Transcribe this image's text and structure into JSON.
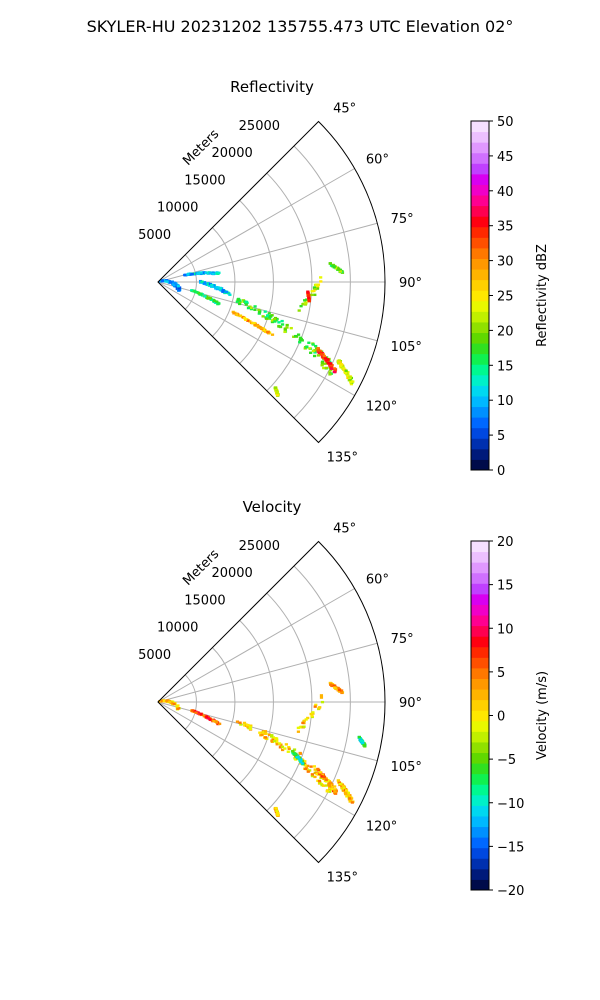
{
  "figure": {
    "suptitle": "SKYLER-HU  20231202  135755.473 UTC Elevation 02°"
  },
  "chart_data": [
    {
      "type": "polar-scatter",
      "title": "Reflectivity",
      "radial_axis_label": "Meters",
      "radial_ticks": [
        5000,
        10000,
        15000,
        20000,
        25000
      ],
      "radial_tick_labels": [
        "5000",
        "10000",
        "15000",
        "20000",
        "25000"
      ],
      "rmax": 29500,
      "theta_range_deg": [
        45,
        135
      ],
      "theta_ticks": [
        45,
        60,
        75,
        90,
        105,
        120,
        135
      ],
      "theta_tick_labels": [
        "45°",
        "60°",
        "75°",
        "90°",
        "105°",
        "120°",
        "135°"
      ],
      "grid": true,
      "colorbar": {
        "label": "Reflectivity dBZ",
        "range": [
          0,
          50
        ],
        "ticks": [
          0,
          5,
          10,
          15,
          20,
          25,
          30,
          35,
          40,
          45,
          50
        ],
        "tick_labels": [
          "0",
          "5",
          "10",
          "15",
          "20",
          "25",
          "30",
          "35",
          "40",
          "45",
          "50"
        ],
        "colors": [
          "#000b4a",
          "#001a7a",
          "#0030b0",
          "#0048e0",
          "#0068ff",
          "#0090ff",
          "#00b8ff",
          "#00d8f0",
          "#00f0c8",
          "#00f890",
          "#10f050",
          "#30e020",
          "#60d800",
          "#90e000",
          "#c0f000",
          "#e8f800",
          "#ffe800",
          "#ffd000",
          "#ffb400",
          "#ff9800",
          "#ff7800",
          "#ff5000",
          "#ff2800",
          "#ff0010",
          "#ff0050",
          "#ff0090",
          "#f000c8",
          "#d800f0",
          "#c040ff",
          "#d070ff",
          "#e098ff",
          "#ecc0ff",
          "#f6e0ff"
        ]
      },
      "series": [
        {
          "theta_deg": [
            84.0,
            87.0
          ],
          "r_m": [
            22500,
            24000
          ],
          "value": 18
        },
        {
          "theta_deg": [
            88.0,
            102.0
          ],
          "r_m": [
            21500,
            18500
          ],
          "value": 21
        },
        {
          "theta_deg": [
            94.0,
            97.0
          ],
          "r_m": [
            19500,
            19800
          ],
          "value": 32
        },
        {
          "theta_deg": [
            103.0,
            117.0
          ],
          "r_m": [
            10500,
            25500
          ],
          "value": 18
        },
        {
          "theta_deg": [
            113.0,
            117.0
          ],
          "r_m": [
            22500,
            26000
          ],
          "value": 34
        },
        {
          "theta_deg": [
            113.5,
            117.5
          ],
          "r_m": [
            25500,
            28500
          ],
          "value": 23
        },
        {
          "theta_deg": [
            104.0,
            110.0
          ],
          "r_m": [
            4500,
            8500
          ],
          "value": 16
        },
        {
          "theta_deg": [
            75.0,
            82.0
          ],
          "r_m": [
            3500,
            8000
          ],
          "value": 10
        },
        {
          "theta_deg": [
            90.0,
            100.0
          ],
          "r_m": [
            5500,
            9500
          ],
          "value": 11
        },
        {
          "theta_deg": [
            70.0,
            110.0
          ],
          "r_m": [
            200,
            3000
          ],
          "value": 9
        },
        {
          "theta_deg": [
            132.0,
            133.5
          ],
          "r_m": [
            20500,
            21500
          ],
          "value": 22
        },
        {
          "theta_deg": [
            112.0,
            115.0
          ],
          "r_m": [
            10500,
            16500
          ],
          "value": 28
        }
      ]
    },
    {
      "type": "polar-scatter",
      "title": "Velocity",
      "radial_axis_label": "Meters",
      "radial_ticks": [
        5000,
        10000,
        15000,
        20000,
        25000
      ],
      "radial_tick_labels": [
        "5000",
        "10000",
        "15000",
        "20000",
        "25000"
      ],
      "rmax": 29500,
      "theta_range_deg": [
        45,
        135
      ],
      "theta_ticks": [
        45,
        60,
        75,
        90,
        105,
        120,
        135
      ],
      "theta_tick_labels": [
        "45°",
        "60°",
        "75°",
        "90°",
        "105°",
        "120°",
        "135°"
      ],
      "grid": true,
      "colorbar": {
        "label": "Velocity (m/s)",
        "range": [
          -20,
          20
        ],
        "ticks": [
          -20,
          -15,
          -10,
          -5,
          0,
          5,
          10,
          15,
          20
        ],
        "tick_labels": [
          "−20",
          "−15",
          "−10",
          "−5",
          "0",
          "5",
          "10",
          "15",
          "20"
        ],
        "colors": [
          "#000b4a",
          "#001a7a",
          "#0030b0",
          "#0048e0",
          "#0068ff",
          "#0090ff",
          "#00b8ff",
          "#00d8f0",
          "#00f0c8",
          "#00f890",
          "#10f050",
          "#30e020",
          "#60d800",
          "#90e000",
          "#c0f000",
          "#e8f800",
          "#ffe800",
          "#ffd000",
          "#ffb400",
          "#ff9800",
          "#ff7800",
          "#ff5000",
          "#ff2800",
          "#ff0010",
          "#ff0050",
          "#ff0090",
          "#f000c8",
          "#d800f0",
          "#c040ff",
          "#d070ff",
          "#e098ff",
          "#ecc0ff",
          "#f6e0ff"
        ]
      },
      "series": [
        {
          "theta_deg": [
            84.0,
            87.0
          ],
          "r_m": [
            22500,
            24000
          ],
          "value": 3
        },
        {
          "theta_deg": [
            88.0,
            102.0
          ],
          "r_m": [
            21500,
            18500
          ],
          "value": 1
        },
        {
          "theta_deg": [
            103.0,
            117.0
          ],
          "r_m": [
            10500,
            25500
          ],
          "value": 1
        },
        {
          "theta_deg": [
            113.0,
            117.0
          ],
          "r_m": [
            22500,
            26000
          ],
          "value": 3
        },
        {
          "theta_deg": [
            113.5,
            117.5
          ],
          "r_m": [
            25500,
            28500
          ],
          "value": 2
        },
        {
          "theta_deg": [
            104.0,
            110.0
          ],
          "r_m": [
            4500,
            8500
          ],
          "value": 6
        },
        {
          "theta_deg": [
            70.0,
            110.0
          ],
          "r_m": [
            200,
            3000
          ],
          "value": 1
        },
        {
          "theta_deg": [
            132.0,
            133.5
          ],
          "r_m": [
            20500,
            21500
          ],
          "value": 2
        },
        {
          "theta_deg": [
            110.0,
            113.0
          ],
          "r_m": [
            18500,
            20500
          ],
          "value": -8
        },
        {
          "theta_deg": [
            100.0,
            102.0
          ],
          "r_m": [
            26500,
            27500
          ],
          "value": -9
        }
      ]
    }
  ]
}
